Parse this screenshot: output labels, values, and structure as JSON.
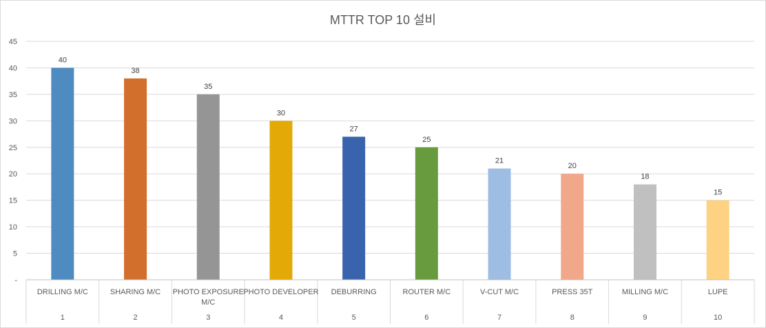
{
  "chart_data": {
    "type": "bar",
    "title": "MTTR TOP 10 설비",
    "categories": [
      "DRILLING M/C",
      "SHARING M/C",
      "PHOTO EXPOSURE M/C",
      "PHOTO DEVELOPER",
      "DEBURRING",
      "ROUTER M/C",
      "V-CUT M/C",
      "PRESS 35T",
      "MILLING M/C",
      "LUPE"
    ],
    "category_lines": [
      [
        "DRILLING M/C"
      ],
      [
        "SHARING M/C"
      ],
      [
        "PHOTO EXPOSURE",
        "M/C"
      ],
      [
        "PHOTO DEVELOPER"
      ],
      [
        "DEBURRING"
      ],
      [
        "ROUTER M/C"
      ],
      [
        "V-CUT M/C"
      ],
      [
        "PRESS 35T"
      ],
      [
        "MILLING M/C"
      ],
      [
        "LUPE"
      ]
    ],
    "index_labels": [
      "1",
      "2",
      "3",
      "4",
      "5",
      "6",
      "7",
      "8",
      "9",
      "10"
    ],
    "values": [
      40,
      38,
      35,
      30,
      27,
      25,
      21,
      20,
      18,
      15
    ],
    "colors": [
      "#4e8bc1",
      "#d36f2c",
      "#959595",
      "#e3a906",
      "#3a63ad",
      "#679b3e",
      "#9dbde2",
      "#f1a88a",
      "#c0c0c0",
      "#fdd383"
    ],
    "ylim": [
      0,
      45
    ],
    "yticks": [
      "-",
      "5",
      "10",
      "15",
      "20",
      "25",
      "30",
      "35",
      "40",
      "45"
    ],
    "grid": true,
    "data_labels": true,
    "xlabel": "",
    "ylabel": ""
  }
}
